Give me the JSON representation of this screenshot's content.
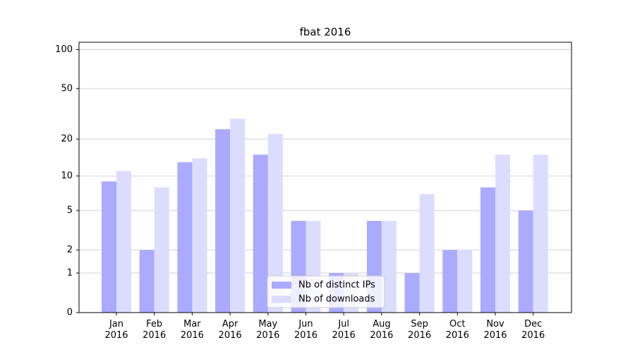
{
  "chart_data": {
    "type": "bar",
    "title": "fbat 2016",
    "categories": [
      "Jan 2016",
      "Feb 2016",
      "Mar 2016",
      "Apr 2016",
      "May 2016",
      "Jun 2016",
      "Jul 2016",
      "Aug 2016",
      "Sep 2016",
      "Oct 2016",
      "Nov 2016",
      "Dec 2016"
    ],
    "series": [
      {
        "name": "Nb of distinct IPs",
        "color": "#aaaaff",
        "values": [
          9,
          2,
          13,
          24,
          15,
          4,
          1,
          4,
          1,
          2,
          8,
          5
        ]
      },
      {
        "name": "Nb of downloads",
        "color": "#dcdcff",
        "values": [
          11,
          8,
          14,
          29,
          22,
          4,
          1,
          4,
          7,
          2,
          15,
          15
        ]
      }
    ],
    "yscale": "log1p",
    "ylim": [
      0,
      114
    ],
    "yticks": [
      0,
      1,
      2,
      5,
      10,
      20,
      50,
      100
    ],
    "grid": true,
    "legend": "lower center"
  }
}
